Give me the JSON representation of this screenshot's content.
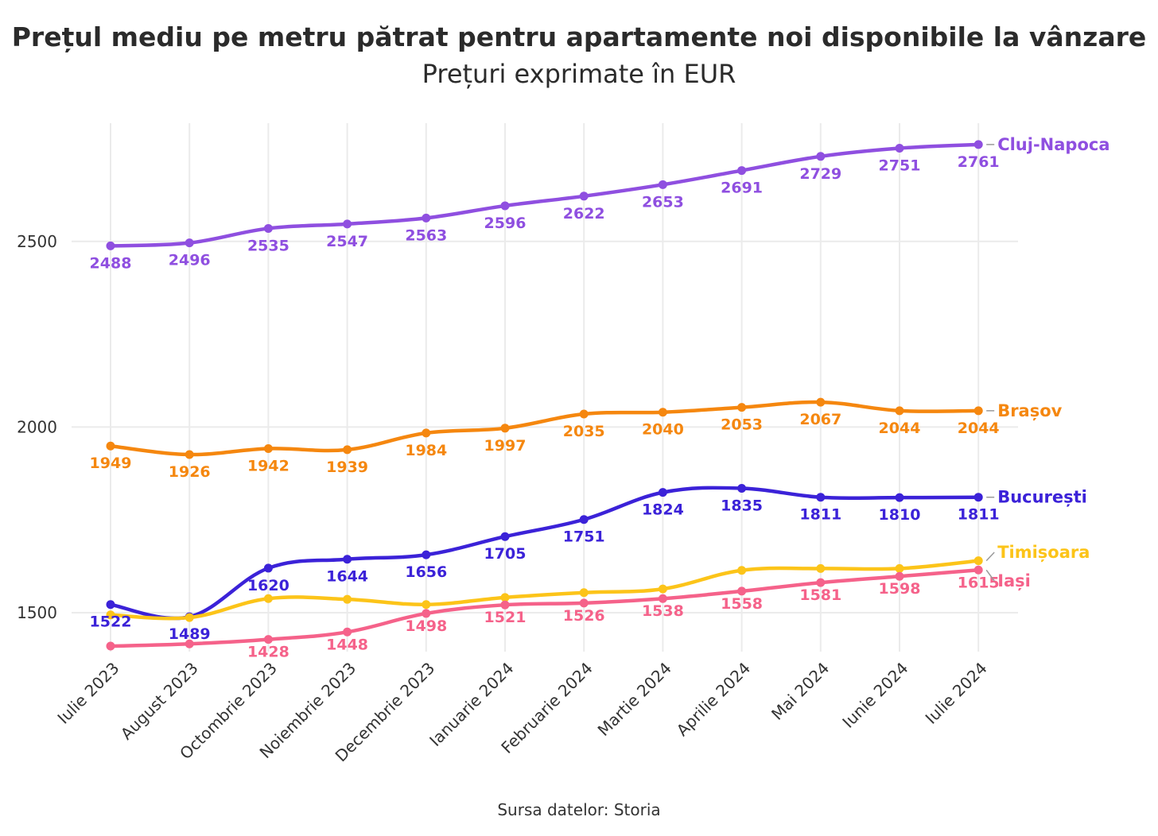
{
  "chart_data": {
    "type": "line",
    "title": "Prețul mediu pe metru pătrat pentru apartamente noi disponibile la vânzare",
    "subtitle": "Prețuri exprimate în EUR",
    "caption": "Sursa datelor: Storia",
    "xlabel": "",
    "ylabel": "",
    "categories": [
      "Iulie 2023",
      "August 2023",
      "Octombrie 2023",
      "Noiembrie 2023",
      "Decembrie 2023",
      "Ianuarie 2024",
      "Februarie 2024",
      "Martie 2024",
      "Aprilie 2024",
      "Mai 2024",
      "Iunie 2024",
      "Iulie 2024"
    ],
    "y_ticks": [
      1500,
      2000,
      2500
    ],
    "ylim": [
      1400,
      2800
    ],
    "grid": true,
    "legend": "direct labels at line ends (right)",
    "series": [
      {
        "name": "Cluj-Napoca",
        "color": "#8f4fe0",
        "values": [
          2488,
          2496,
          2535,
          2547,
          2563,
          2596,
          2622,
          2653,
          2691,
          2729,
          2751,
          2761
        ],
        "labels": [
          "2488",
          "2496",
          "2535",
          "2547",
          "2563",
          "2596",
          "2622",
          "2653",
          "2691",
          "2729",
          "2751",
          "2761"
        ]
      },
      {
        "name": "Brașov",
        "color": "#f5870f",
        "values": [
          1949,
          1926,
          1942,
          1939,
          1984,
          1997,
          2035,
          2040,
          2053,
          2067,
          2044,
          2044
        ],
        "labels": [
          "1949",
          "1926",
          "1942",
          "1939",
          "1984",
          "1997",
          "2035",
          "2040",
          "2053",
          "2067",
          "2044",
          "2044"
        ]
      },
      {
        "name": "București",
        "color": "#3b22d8",
        "values": [
          1522,
          1489,
          1620,
          1644,
          1656,
          1705,
          1751,
          1824,
          1835,
          1811,
          1810,
          1811
        ],
        "labels": [
          "1522",
          "1489",
          "1620",
          "1644",
          "1656",
          "1705",
          "1751",
          "1824",
          "1835",
          "1811",
          "1810",
          "1811"
        ]
      },
      {
        "name": "Timișoara",
        "color": "#fcc419",
        "values": [
          1494,
          1487,
          1538,
          1536,
          1522,
          1541,
          1554,
          1564,
          1614,
          1619,
          1619,
          1640
        ],
        "labels": []
      },
      {
        "name": "Iași",
        "color": "#f5628a",
        "values": [
          1410,
          1416,
          1428,
          1448,
          1498,
          1521,
          1526,
          1538,
          1558,
          1581,
          1598,
          1615
        ],
        "labels": [
          "",
          "",
          "1428",
          "1448",
          "1498",
          "1521",
          "1526",
          "1538",
          "1558",
          "1581",
          "1598",
          "1615"
        ]
      }
    ]
  }
}
